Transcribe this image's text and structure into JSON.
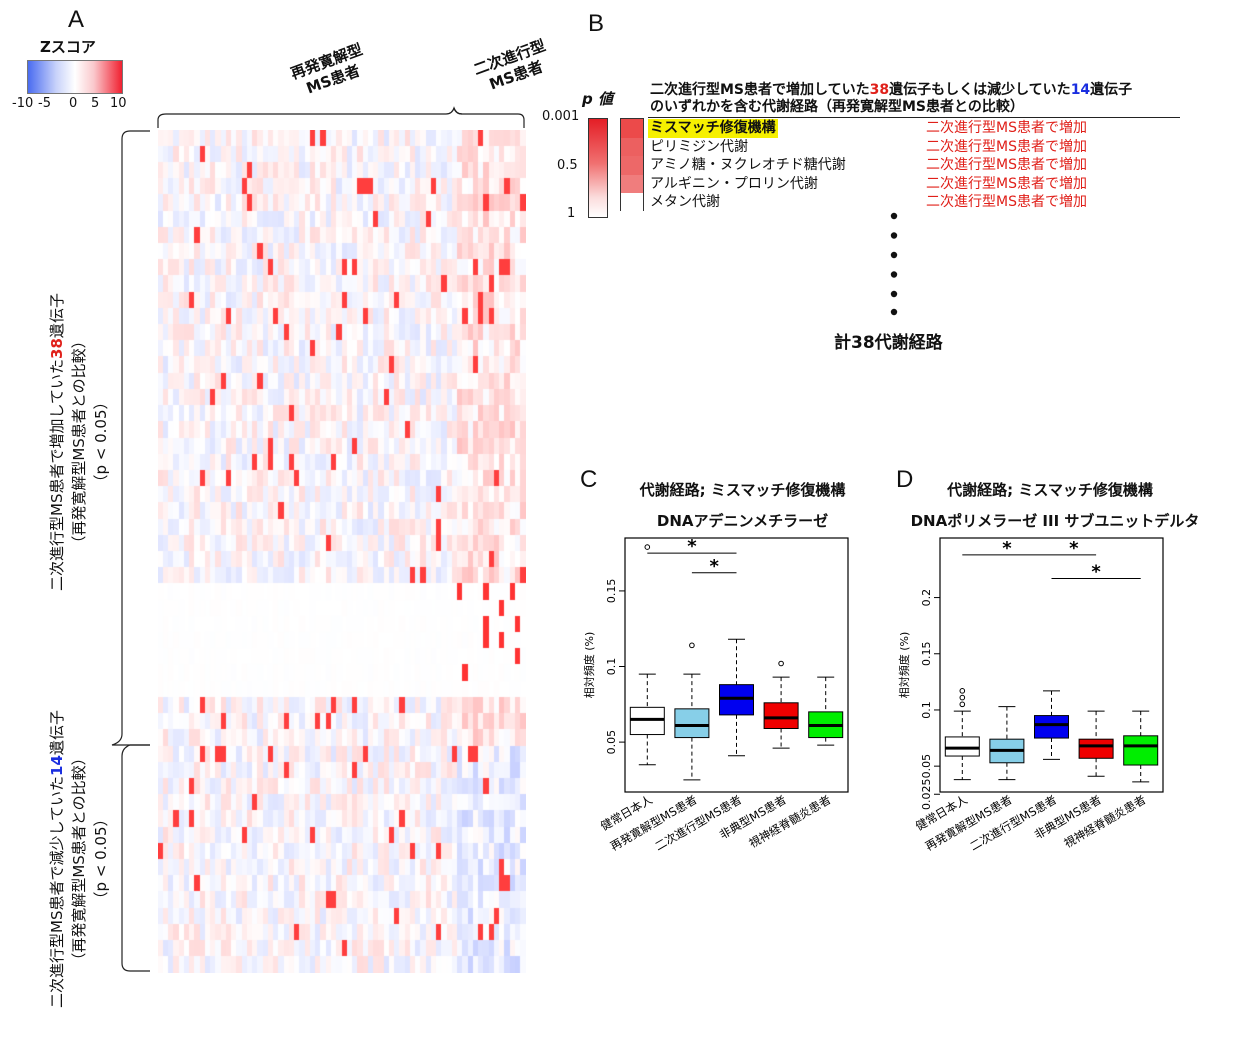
{
  "panels": {
    "A": "A",
    "B": "B",
    "C": "C",
    "D": "D"
  },
  "colorbar": {
    "title": "Zスコア",
    "ticks": [
      "-10",
      "-5",
      "0",
      "5",
      "10"
    ],
    "colors": {
      "low": "#4a6cf0",
      "mid": "#ffffff",
      "high": "#f02030"
    }
  },
  "heatmap": {
    "group_labels": [
      {
        "line1": "再発寛解型",
        "line2": "MS患者"
      },
      {
        "line1": "二次進行型",
        "line2": "MS患者"
      }
    ],
    "row_label_up": {
      "line1_pre": "二次進行型MS患者で増加していた",
      "line1_num": "38",
      "line1_post": "遺伝子",
      "line2": "（再発寛解型MS患者との比較）",
      "line3": "（p < 0.05）"
    },
    "row_label_down": {
      "line1_pre": "二次進行型MS患者で減少していた",
      "line1_num": "14",
      "line1_post": "遺伝子",
      "line2": "（再発寛解型MS患者との比較）",
      "line3": "（p < 0.05）"
    }
  },
  "panelB": {
    "pvalue_title": "p 値",
    "pvalue_ticks": [
      "0.001",
      "0.5",
      "1"
    ],
    "header_pre": "二次進行型MS患者で増加していた",
    "header_num1": "38",
    "header_mid": "遺伝子もしくは減少していた",
    "header_num2": "14",
    "header_post": "遺伝子",
    "header_line2": "のいずれかを含む代謝経路（再発寛解型MS患者との比較）",
    "rows": [
      {
        "name": "ミスマッチ修復機構",
        "effect": "二次進行型MS患者で増加",
        "highlight": true,
        "p_color": "#ec4a4a"
      },
      {
        "name": "ピリミジン代謝",
        "effect": "二次進行型MS患者で増加",
        "highlight": false,
        "p_color": "#ec6060"
      },
      {
        "name": "アミノ糖・ヌクレオチド糖代謝",
        "effect": "二次進行型MS患者で増加",
        "highlight": false,
        "p_color": "#ed6868"
      },
      {
        "name": "アルギニン・プロリン代謝",
        "effect": "二次進行型MS患者で増加",
        "highlight": false,
        "p_color": "#f07d7d"
      },
      {
        "name": "メタン代謝",
        "effect": "二次進行型MS患者で増加",
        "highlight": false,
        "p_color": "#ffffff"
      }
    ],
    "total": "計38代謝経路"
  },
  "chart_data": [
    {
      "type": "boxplot",
      "panel": "C",
      "title": "代謝経路; ミスマッチ修復機構",
      "subtitle": "DNAアデニンメチラーゼ",
      "ylabel": "相対頻度 (%)",
      "yticks": [
        "0.05",
        "0.1",
        "0.15"
      ],
      "ylim": [
        0.017,
        0.185
      ],
      "categories": [
        "健常日本人",
        "再発寛解型MS患者",
        "二次進行型MS患者",
        "非典型MS患者",
        "視神経脊髄炎患者"
      ],
      "colors": [
        "#ffffff",
        "#87cfe8",
        "#0000f0",
        "#f00000",
        "#00ee00"
      ],
      "boxes": [
        {
          "whisker_low": 0.035,
          "q1": 0.055,
          "median": 0.065,
          "q3": 0.073,
          "whisker_high": 0.095,
          "outliers": [
            0.179
          ]
        },
        {
          "whisker_low": 0.025,
          "q1": 0.053,
          "median": 0.061,
          "q3": 0.072,
          "whisker_high": 0.095,
          "outliers": [
            0.114
          ]
        },
        {
          "whisker_low": 0.041,
          "q1": 0.068,
          "median": 0.079,
          "q3": 0.088,
          "whisker_high": 0.118,
          "outliers": []
        },
        {
          "whisker_low": 0.046,
          "q1": 0.059,
          "median": 0.066,
          "q3": 0.076,
          "whisker_high": 0.093,
          "outliers": [
            0.102
          ]
        },
        {
          "whisker_low": 0.048,
          "q1": 0.053,
          "median": 0.061,
          "q3": 0.07,
          "whisker_high": 0.093,
          "outliers": []
        }
      ],
      "significance": [
        {
          "from": 0,
          "to": 2,
          "label": "*",
          "y": 0.175
        },
        {
          "from": 1,
          "to": 2,
          "label": "*",
          "y": 0.162
        }
      ]
    },
    {
      "type": "boxplot",
      "panel": "D",
      "title": "代謝経路; ミスマッチ修復機構",
      "subtitle": "DNAポリメラーゼ III サブユニットデルタ",
      "ylabel": "相対頻度 (%)",
      "yticks": [
        "0.05",
        "0.1",
        "0.15",
        "0.2",
        "0.025"
      ],
      "ylim": [
        0.027,
        0.253
      ],
      "categories": [
        "健常日本人",
        "再発寛解型MS患者",
        "二次進行型MS患者",
        "非典型MS患者",
        "視神経脊髄炎患者"
      ],
      "colors": [
        "#ffffff",
        "#87cfe8",
        "#0000f0",
        "#f00000",
        "#00ee00"
      ],
      "boxes": [
        {
          "whisker_low": 0.038,
          "q1": 0.059,
          "median": 0.066,
          "q3": 0.076,
          "whisker_high": 0.099,
          "outliers": [
            0.105,
            0.111,
            0.117
          ]
        },
        {
          "whisker_low": 0.038,
          "q1": 0.053,
          "median": 0.064,
          "q3": 0.074,
          "whisker_high": 0.103,
          "outliers": []
        },
        {
          "whisker_low": 0.056,
          "q1": 0.075,
          "median": 0.087,
          "q3": 0.095,
          "whisker_high": 0.117,
          "outliers": []
        },
        {
          "whisker_low": 0.041,
          "q1": 0.057,
          "median": 0.068,
          "q3": 0.074,
          "whisker_high": 0.099,
          "outliers": []
        },
        {
          "whisker_low": 0.036,
          "q1": 0.051,
          "median": 0.068,
          "q3": 0.077,
          "whisker_high": 0.099,
          "outliers": []
        }
      ],
      "significance": [
        {
          "from": 0,
          "to": 2,
          "label": "*",
          "y": 0.238
        },
        {
          "from": 2,
          "to": 3,
          "label": "*",
          "y": 0.238
        },
        {
          "from": 2,
          "to": 4,
          "label": "*",
          "y": 0.217
        }
      ]
    }
  ]
}
